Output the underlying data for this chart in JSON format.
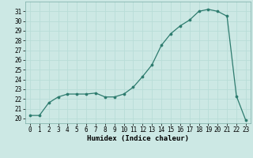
{
  "x": [
    0,
    1,
    2,
    3,
    4,
    5,
    6,
    7,
    8,
    9,
    10,
    11,
    12,
    13,
    14,
    15,
    16,
    17,
    18,
    19,
    20,
    21,
    22,
    23
  ],
  "y": [
    20.3,
    20.3,
    21.6,
    22.2,
    22.5,
    22.5,
    22.5,
    22.6,
    22.2,
    22.2,
    22.5,
    23.2,
    24.3,
    25.5,
    27.5,
    28.7,
    29.5,
    30.1,
    31.0,
    31.2,
    31.0,
    30.5,
    22.3,
    19.8
  ],
  "xlabel": "Humidex (Indice chaleur)",
  "xlim": [
    -0.5,
    23.5
  ],
  "ylim": [
    19.5,
    32.0
  ],
  "yticks": [
    20,
    21,
    22,
    23,
    24,
    25,
    26,
    27,
    28,
    29,
    30,
    31
  ],
  "xticks": [
    0,
    1,
    2,
    3,
    4,
    5,
    6,
    7,
    8,
    9,
    10,
    11,
    12,
    13,
    14,
    15,
    16,
    17,
    18,
    19,
    20,
    21,
    22,
    23
  ],
  "line_color": "#2d7b6e",
  "background_color": "#cce8e4",
  "grid_color": "#b8ddd8",
  "label_fontsize": 6.5,
  "tick_fontsize": 5.5
}
